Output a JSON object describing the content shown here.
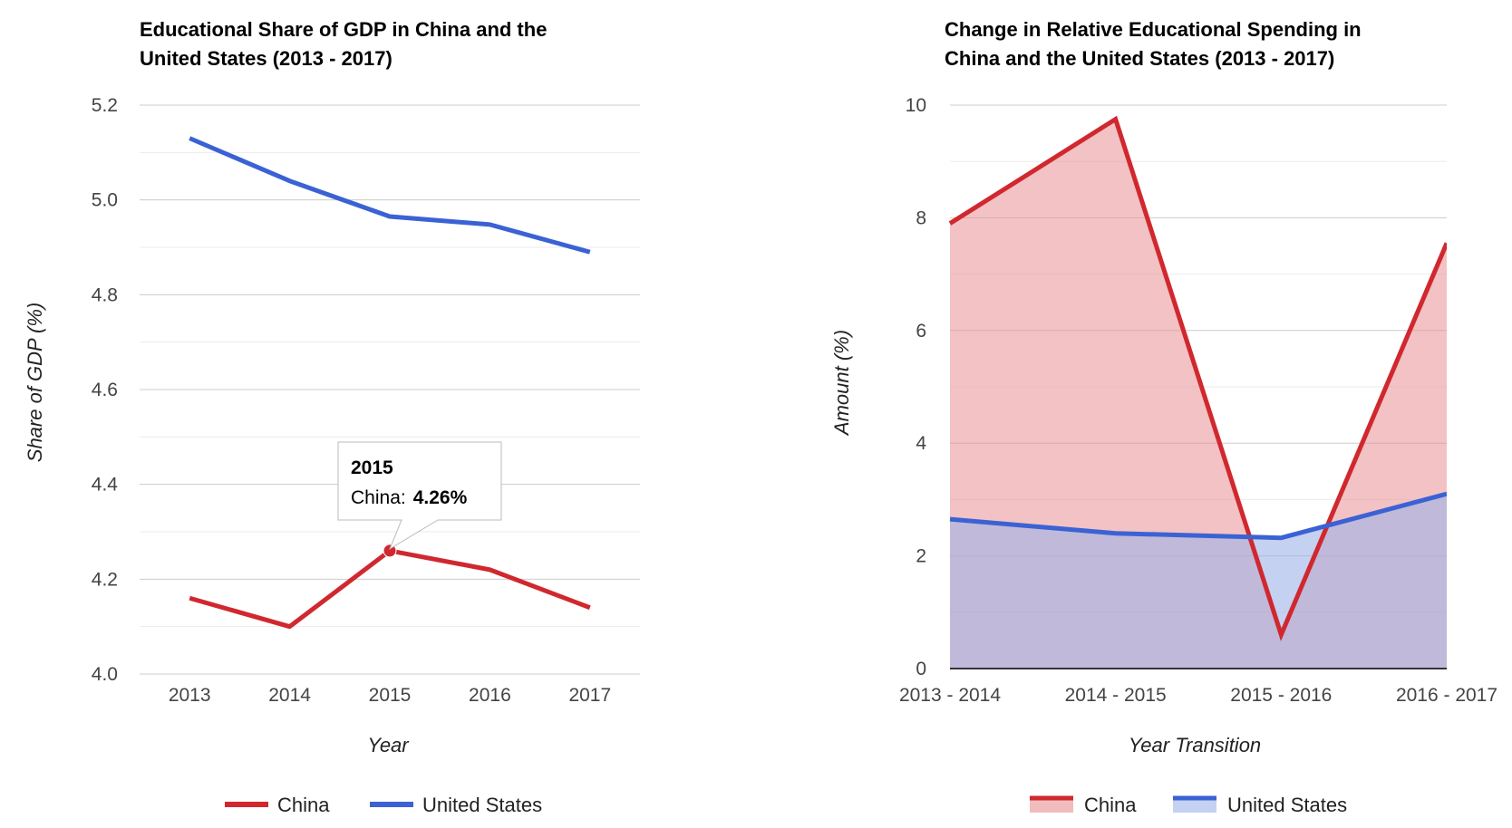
{
  "colors": {
    "china": "#d0282e",
    "united_states": "#3b62d4",
    "china_fill": "#e88f93",
    "united_states_fill": "#9fb3e8",
    "gridline": "#cccccc",
    "minor_gridline": "#ebebeb",
    "baseline": "#333333"
  },
  "chart_data": [
    {
      "type": "line",
      "title_line1": "Educational Share of GDP in China and the",
      "title_line2": "United States (2013 - 2017)",
      "xlabel": "Year",
      "ylabel": "Share of GDP (%)",
      "categories": [
        "2013",
        "2014",
        "2015",
        "2016",
        "2017"
      ],
      "ylim": [
        4.0,
        5.2
      ],
      "yticks": [
        "4.0",
        "4.2",
        "4.4",
        "4.6",
        "4.8",
        "5.0",
        "5.2"
      ],
      "grid": true,
      "legend_position": "bottom",
      "series": [
        {
          "name": "China",
          "values": [
            4.16,
            4.1,
            4.26,
            4.22,
            4.14
          ]
        },
        {
          "name": "United States",
          "values": [
            5.13,
            5.04,
            4.965,
            4.948,
            4.89
          ]
        }
      ],
      "tooltip": {
        "category": "2015",
        "series_label": "China:",
        "value": "4.26%"
      }
    },
    {
      "type": "area",
      "title_line1": "Change in Relative Educational Spending in",
      "title_line2": "China and the United States (2013 - 2017)",
      "xlabel": "Year Transition",
      "ylabel": "Amount (%)",
      "categories": [
        "2013 - 2014",
        "2014 - 2015",
        "2015 - 2016",
        "2016 - 2017"
      ],
      "ylim": [
        0,
        10
      ],
      "yticks": [
        "0",
        "2",
        "4",
        "6",
        "8",
        "10"
      ],
      "grid": true,
      "legend_position": "bottom",
      "series": [
        {
          "name": "China",
          "values": [
            7.9,
            9.75,
            0.6,
            7.55
          ]
        },
        {
          "name": "United States",
          "values": [
            2.65,
            2.4,
            2.32,
            3.1
          ]
        }
      ]
    }
  ]
}
